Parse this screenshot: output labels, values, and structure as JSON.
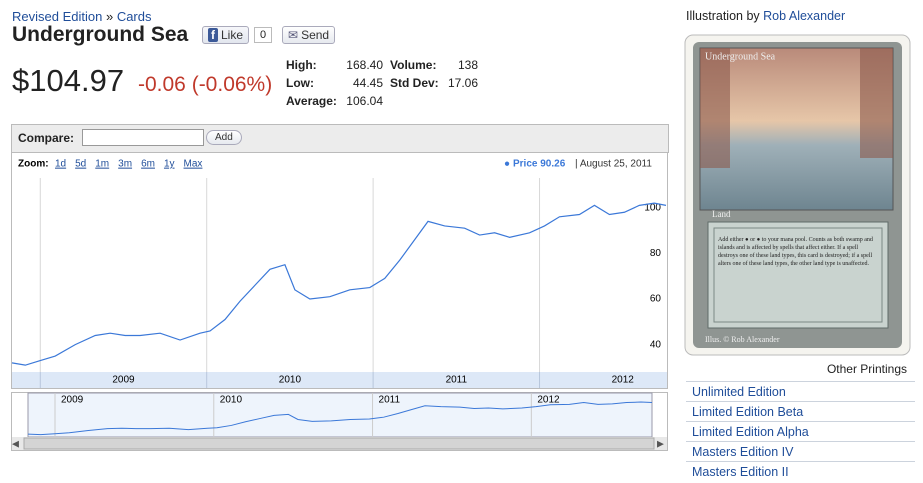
{
  "breadcrumb": {
    "edition": "Revised Edition",
    "separator": "»",
    "section": "Cards"
  },
  "title": "Underground Sea",
  "social": {
    "like": "Like",
    "like_count": "0",
    "send": "Send"
  },
  "price": "$104.97",
  "change": "-0.06 (-0.06%)",
  "stats": [
    {
      "label": "High:",
      "value": "168.40"
    },
    {
      "label": "Low:",
      "value": "44.45"
    },
    {
      "label": "Average:",
      "value": "106.04"
    },
    {
      "label": "Volume:",
      "value": "138"
    },
    {
      "label": "Std Dev:",
      "value": "17.06"
    }
  ],
  "compare": {
    "label": "Compare:",
    "button": "Add"
  },
  "zoom": {
    "label": "Zoom:",
    "options": [
      "1d",
      "5d",
      "1m",
      "3m",
      "6m",
      "1y",
      "Max"
    ]
  },
  "tooltip": {
    "series": "Price 90.26",
    "date": "| August 25, 2011"
  },
  "chart_data": {
    "type": "line",
    "x": [
      2008.83,
      2008.91,
      2009.0,
      2009.09,
      2009.21,
      2009.33,
      2009.42,
      2009.51,
      2009.6,
      2009.72,
      2009.84,
      2009.96,
      2010.02,
      2010.11,
      2010.2,
      2010.29,
      2010.38,
      2010.47,
      2010.53,
      2010.62,
      2010.74,
      2010.86,
      2010.98,
      2011.07,
      2011.16,
      2011.25,
      2011.33,
      2011.43,
      2011.55,
      2011.64,
      2011.73,
      2011.82,
      2011.94,
      2012.03,
      2012.12,
      2012.24,
      2012.33,
      2012.42,
      2012.51,
      2012.6,
      2012.69,
      2012.76
    ],
    "values": [
      32,
      31,
      33,
      35,
      40,
      44,
      45,
      44,
      44,
      45,
      42,
      45,
      46,
      51,
      59,
      66,
      73,
      75,
      64,
      60,
      61,
      64,
      65,
      69,
      77,
      86,
      94,
      92,
      91,
      88,
      89,
      87,
      89,
      92,
      96,
      97,
      101,
      97,
      98,
      101,
      102,
      101
    ],
    "color": "#3b78d8",
    "xlim": [
      2008.83,
      2012.76
    ],
    "xticks": [
      2009,
      2010,
      2011,
      2012
    ],
    "ylim": [
      28,
      113
    ],
    "yticks": [
      40,
      60,
      80,
      100
    ],
    "grid": true
  },
  "illustration": {
    "label": "Illustration by",
    "artist": "Rob Alexander"
  },
  "card": {
    "name": "Underground Sea",
    "type": "Land",
    "text": "Add either ● or ● to your mana pool. Counts as both swamp and islands and is affected by spells that affect either. If a spell destroys one of these land types, this card is destroyed; if a spell alters one of these land types, the other land type is unaffected.",
    "credit": "Illus. © Rob Alexander"
  },
  "other_printings": {
    "title": "Other Printings",
    "items": [
      "Unlimited Edition",
      "Limited Edition Beta",
      "Limited Edition Alpha",
      "Masters Edition IV",
      "Masters Edition II"
    ]
  }
}
